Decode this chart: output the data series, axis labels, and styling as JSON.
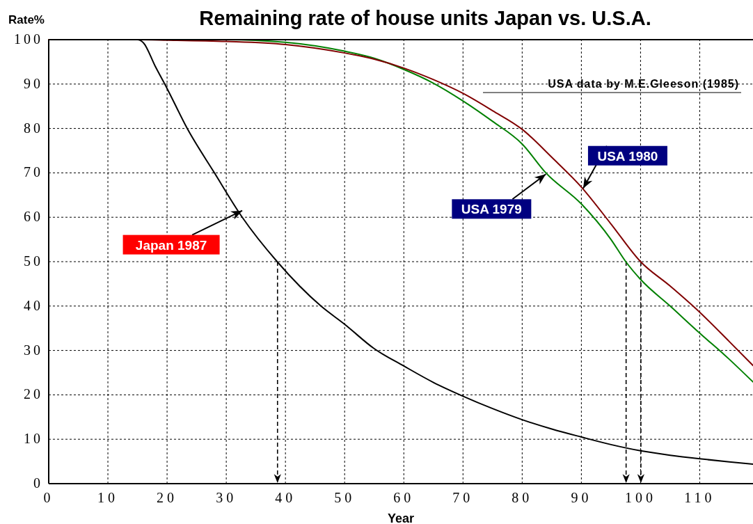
{
  "chart_data": {
    "type": "line",
    "title": "Remaining rate of house units Japan vs. U.S.A.",
    "xlabel": "Year",
    "ylabel": "Rate%",
    "xlim": [
      0,
      119
    ],
    "ylim": [
      0,
      100
    ],
    "xticks": [
      0,
      10,
      20,
      30,
      40,
      50,
      60,
      70,
      80,
      90,
      100,
      110
    ],
    "yticks": [
      0,
      10,
      20,
      30,
      40,
      50,
      60,
      70,
      80,
      90,
      100
    ],
    "grid": true,
    "line_style": "solid",
    "series": [
      {
        "color": "#000000",
        "x": [
          0,
          15,
          16,
          18,
          20,
          23.4,
          28,
          32.7,
          38.6,
          46,
          50,
          55,
          60,
          65,
          70,
          75,
          80,
          85,
          90,
          95,
          100,
          105,
          110,
          115,
          119
        ],
        "values": [
          100,
          100,
          99.3,
          94,
          89,
          80,
          70,
          60,
          50,
          40,
          35.9,
          30.4,
          26.5,
          22.8,
          19.7,
          16.9,
          14.4,
          12.3,
          10.5,
          8.8,
          7.4,
          6.4,
          5.6,
          4.9,
          4.4
        ]
      },
      {
        "color": "#008000",
        "x": [
          0,
          20,
          30,
          40,
          50,
          55,
          60,
          65,
          70,
          75,
          80,
          84,
          90,
          95,
          97.5,
          100,
          105,
          110,
          115,
          119
        ],
        "values": [
          100,
          100,
          100,
          99.4,
          97.4,
          95.8,
          93.3,
          90.2,
          86.2,
          81.6,
          76.5,
          70,
          63,
          55,
          50,
          46,
          40,
          33.9,
          28,
          22.9
        ]
      },
      {
        "color": "#800000",
        "x": [
          0,
          15,
          20,
          30,
          40,
          50,
          55,
          60,
          65,
          70,
          75,
          80,
          85,
          90,
          95,
          100,
          105,
          110,
          115,
          119
        ],
        "values": [
          100,
          100,
          99.9,
          99.6,
          98.9,
          97,
          95.6,
          93.6,
          91,
          87.9,
          84,
          79.8,
          73.5,
          66.8,
          58.5,
          50,
          44.5,
          38.6,
          32,
          26.6
        ]
      }
    ],
    "ref_lines": [
      {
        "axis": "x",
        "value": 38.6,
        "line_style": "dashed"
      },
      {
        "axis": "x",
        "value": 97.5,
        "line_style": "dashed"
      },
      {
        "axis": "x",
        "value": 100,
        "line_style": "dashed"
      }
    ],
    "annotations": [
      "USA data by M.E.Gleeson (1985)",
      {
        "text": "Japan 1987",
        "x": 32.7,
        "y": 61.5
      },
      {
        "text": "USA 1979",
        "x": 84,
        "y": 69.7
      },
      {
        "text": "USA 1980",
        "x": 90.3,
        "y": 66.5
      }
    ]
  }
}
